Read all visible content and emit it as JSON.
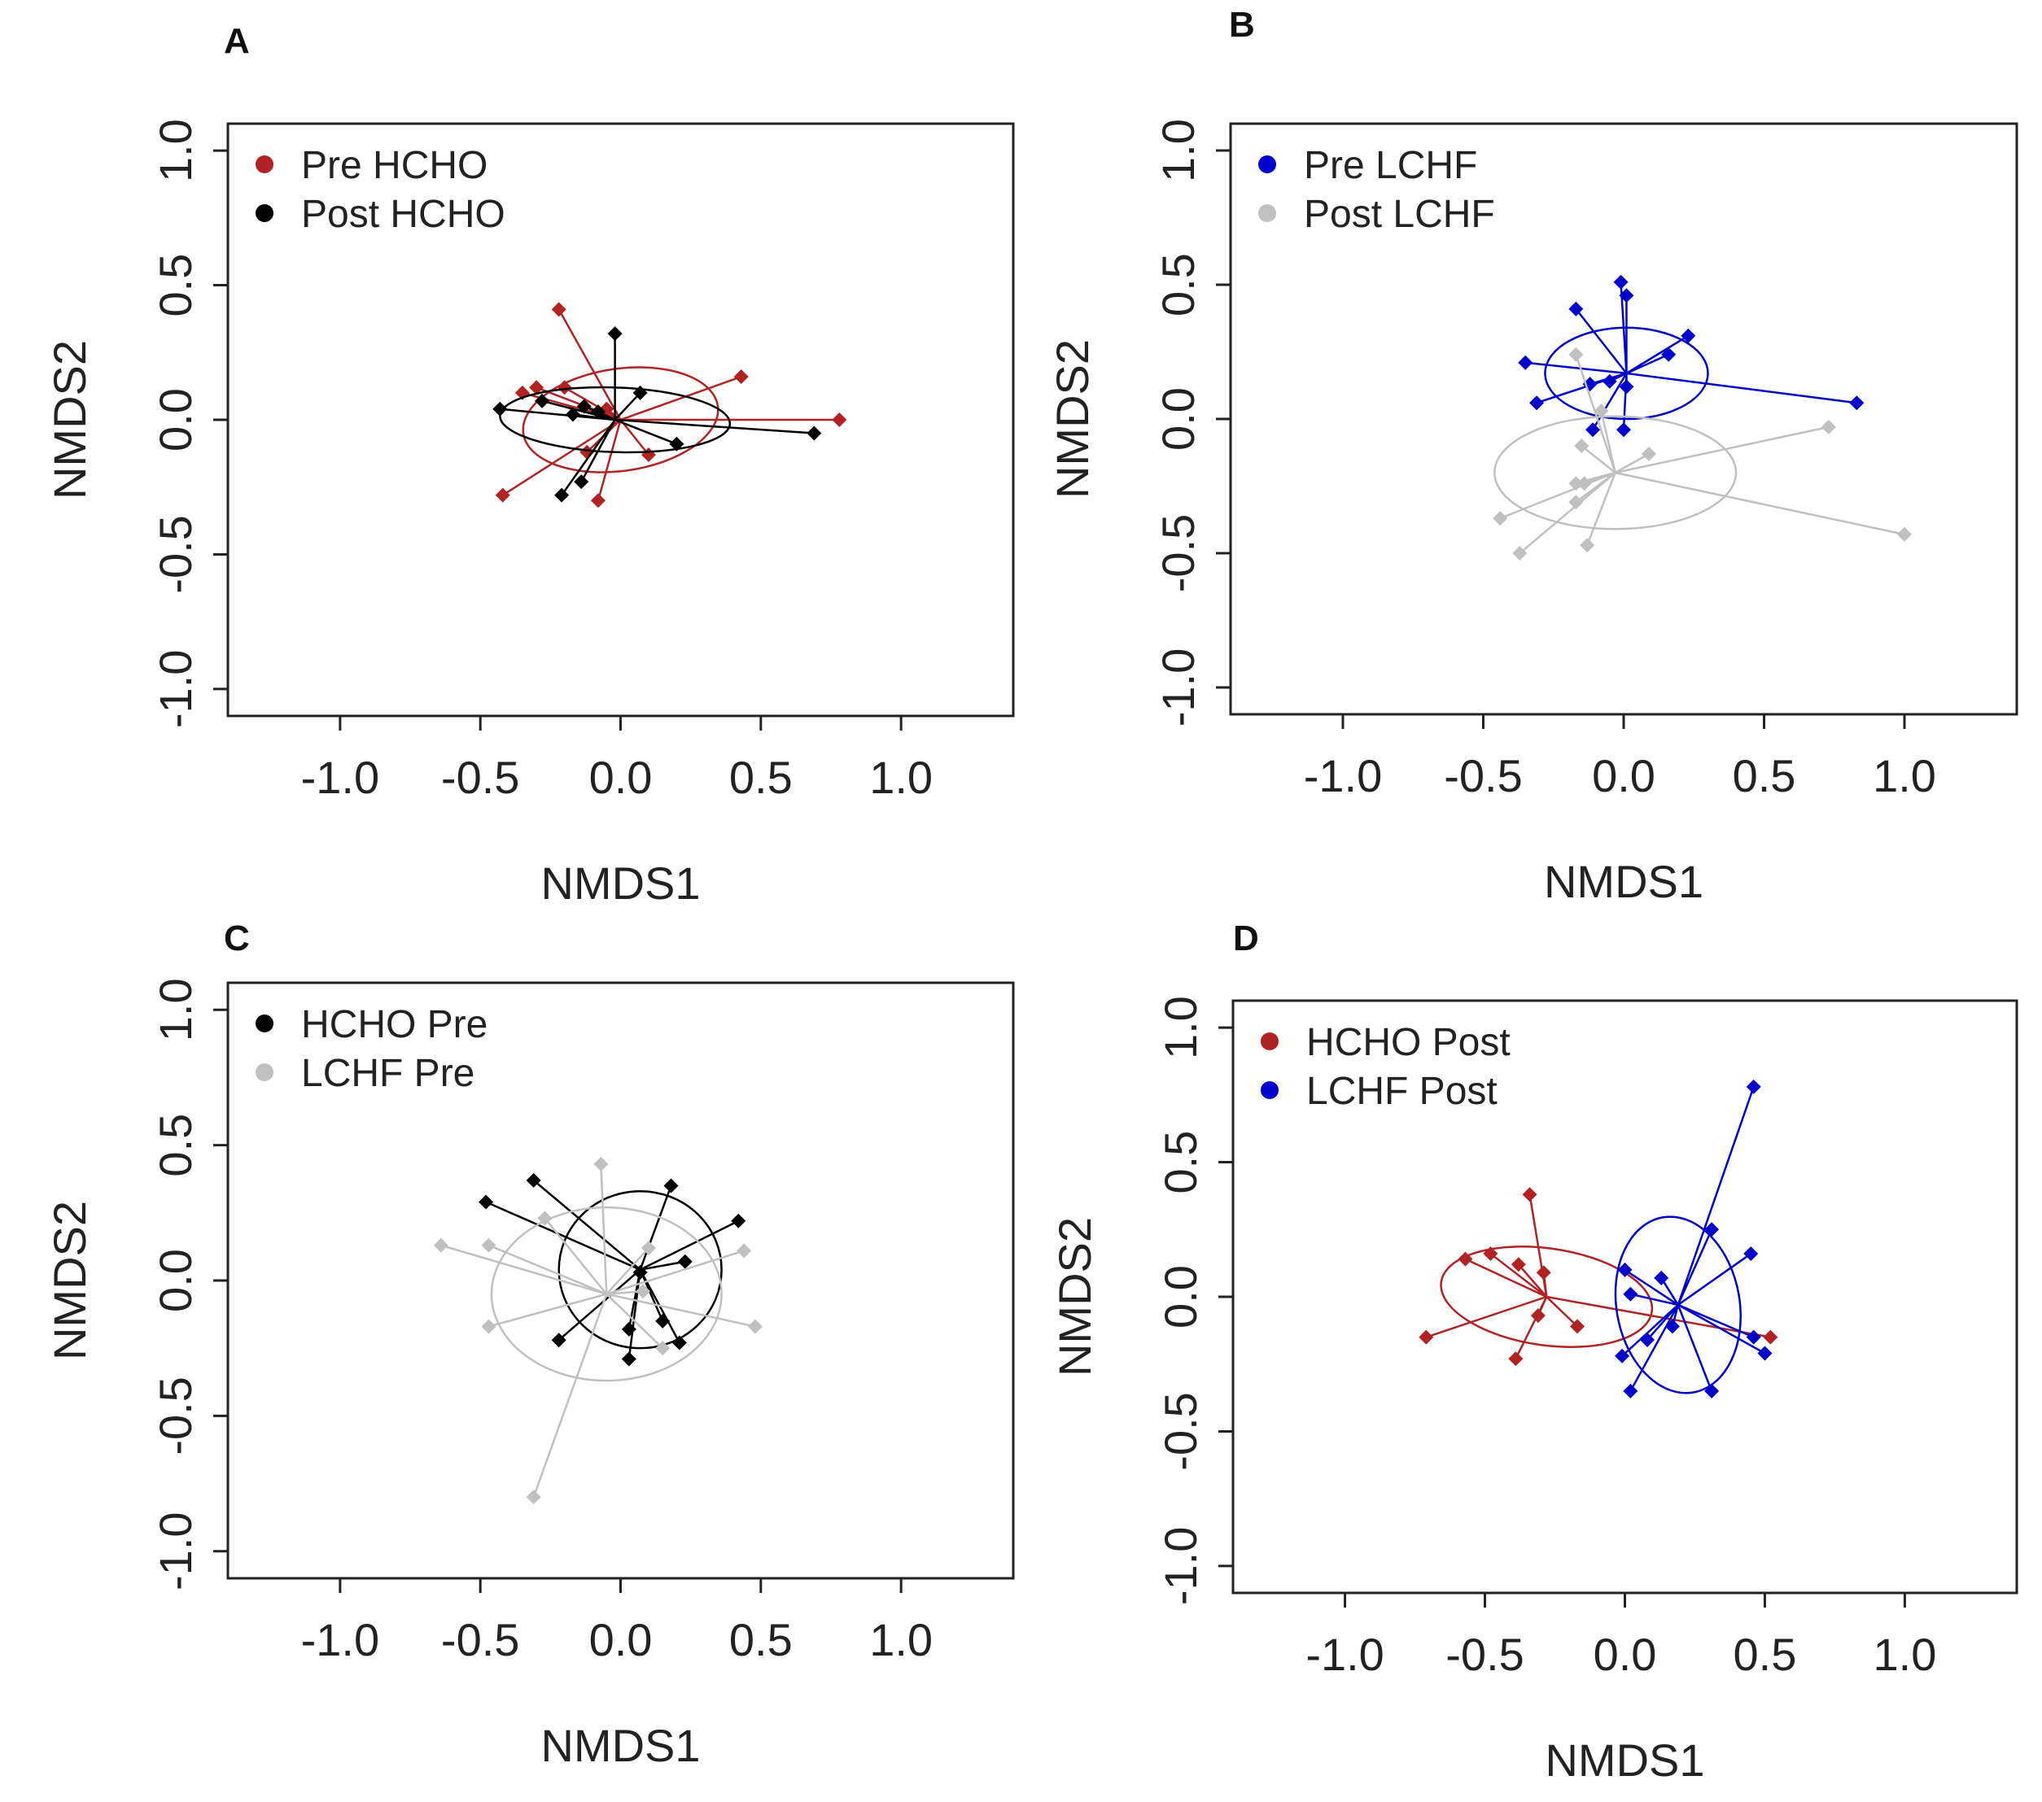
{
  "chart_data": [
    {
      "type": "scatter",
      "panel": "A",
      "xlabel": "NMDS1",
      "ylabel": "NMDS2",
      "xlim": [
        -1.4,
        1.4
      ],
      "ylim": [
        -1.1,
        1.1
      ],
      "xticks": [
        -1.0,
        -0.5,
        0.0,
        0.5,
        1.0
      ],
      "yticks": [
        -1.0,
        -0.5,
        0.0,
        0.5,
        1.0
      ],
      "xtick_labels": [
        "-1.0",
        "-0.5",
        "0.0",
        "0.5",
        "1.0"
      ],
      "ytick_labels": [
        "-1.0",
        "-0.5",
        "0.0",
        "0.5",
        "1.0"
      ],
      "legend_position": "top-left",
      "series": [
        {
          "name": "Pre HCHO",
          "color": "#b22222",
          "centroid": [
            0.0,
            0.0
          ],
          "ellipse": {
            "rx": 0.35,
            "ry": 0.19,
            "angle_deg": 8
          },
          "points": [
            [
              -0.22,
              0.41
            ],
            [
              0.43,
              0.16
            ],
            [
              0.78,
              0.0
            ],
            [
              -0.35,
              0.1
            ],
            [
              -0.3,
              0.12
            ],
            [
              -0.2,
              0.12
            ],
            [
              -0.05,
              0.04
            ],
            [
              -0.12,
              -0.12
            ],
            [
              0.1,
              -0.13
            ],
            [
              -0.08,
              -0.3
            ],
            [
              -0.42,
              -0.28
            ]
          ]
        },
        {
          "name": "Post HCHO",
          "color": "#000000",
          "centroid": [
            -0.02,
            0.0
          ],
          "ellipse": {
            "rx": 0.41,
            "ry": 0.12,
            "angle_deg": -2
          },
          "points": [
            [
              -0.43,
              0.04
            ],
            [
              -0.28,
              0.07
            ],
            [
              -0.17,
              0.02
            ],
            [
              -0.13,
              0.05
            ],
            [
              -0.08,
              0.03
            ],
            [
              -0.02,
              0.32
            ],
            [
              0.07,
              0.1
            ],
            [
              0.2,
              -0.09
            ],
            [
              0.69,
              -0.05
            ],
            [
              -0.14,
              -0.23
            ],
            [
              -0.21,
              -0.28
            ]
          ]
        }
      ]
    },
    {
      "type": "scatter",
      "panel": "B",
      "xlabel": "NMDS1",
      "ylabel": "NMDS2",
      "xlim": [
        -1.4,
        1.4
      ],
      "ylim": [
        -1.1,
        1.1
      ],
      "xticks": [
        -1.0,
        -0.5,
        0.0,
        0.5,
        1.0
      ],
      "yticks": [
        -1.0,
        -0.5,
        0.0,
        0.5,
        1.0
      ],
      "xtick_labels": [
        "-1.0",
        "-0.5",
        "0.0",
        "0.5",
        "1.0"
      ],
      "ytick_labels": [
        "-1.0",
        "-0.5",
        "0.0",
        "0.5",
        "1.0"
      ],
      "legend_position": "top-left",
      "series": [
        {
          "name": "Pre LCHF",
          "color": "#0000cd",
          "centroid": [
            0.01,
            0.17
          ],
          "ellipse": {
            "rx": 0.29,
            "ry": 0.17,
            "angle_deg": 0
          },
          "points": [
            [
              -0.01,
              0.51
            ],
            [
              0.01,
              0.46
            ],
            [
              -0.17,
              0.41
            ],
            [
              0.23,
              0.31
            ],
            [
              0.16,
              0.24
            ],
            [
              -0.35,
              0.21
            ],
            [
              -0.12,
              0.13
            ],
            [
              0.01,
              0.12
            ],
            [
              -0.05,
              0.14
            ],
            [
              -0.31,
              0.06
            ],
            [
              0.83,
              0.06
            ],
            [
              -0.11,
              -0.04
            ],
            [
              0.0,
              -0.04
            ]
          ]
        },
        {
          "name": "Post LCHF",
          "color": "#c0c0c0",
          "centroid": [
            -0.03,
            -0.2
          ],
          "ellipse": {
            "rx": 0.43,
            "ry": 0.21,
            "angle_deg": 0
          },
          "points": [
            [
              -0.17,
              0.24
            ],
            [
              -0.08,
              0.03
            ],
            [
              0.73,
              -0.03
            ],
            [
              -0.15,
              -0.1
            ],
            [
              0.09,
              -0.13
            ],
            [
              -0.17,
              -0.24
            ],
            [
              -0.14,
              -0.24
            ],
            [
              -0.17,
              -0.31
            ],
            [
              -0.44,
              -0.37
            ],
            [
              1.0,
              -0.43
            ],
            [
              -0.13,
              -0.47
            ],
            [
              -0.37,
              -0.5
            ]
          ]
        }
      ]
    },
    {
      "type": "scatter",
      "panel": "C",
      "xlabel": "NMDS1",
      "ylabel": "NMDS2",
      "xlim": [
        -1.4,
        1.4
      ],
      "ylim": [
        -1.1,
        1.1
      ],
      "xticks": [
        -1.0,
        -0.5,
        0.0,
        0.5,
        1.0
      ],
      "yticks": [
        -1.0,
        -0.5,
        0.0,
        0.5,
        1.0
      ],
      "xtick_labels": [
        "-1.0",
        "-0.5",
        "0.0",
        "0.5",
        "1.0"
      ],
      "ytick_labels": [
        "-1.0",
        "-0.5",
        "0.0",
        "0.5",
        "1.0"
      ],
      "legend_position": "top-left",
      "series": [
        {
          "name": "HCHO Pre",
          "color": "#000000",
          "centroid": [
            0.07,
            0.04
          ],
          "ellipse": {
            "rx": 0.29,
            "ry": 0.29,
            "angle_deg": 0
          },
          "points": [
            [
              -0.31,
              0.37
            ],
            [
              -0.48,
              0.29
            ],
            [
              0.18,
              0.35
            ],
            [
              0.42,
              0.22
            ],
            [
              0.23,
              0.07
            ],
            [
              0.07,
              0.03
            ],
            [
              0.15,
              -0.15
            ],
            [
              0.03,
              -0.18
            ],
            [
              -0.22,
              -0.22
            ],
            [
              0.21,
              -0.23
            ],
            [
              0.03,
              -0.29
            ]
          ]
        },
        {
          "name": "LCHF Pre",
          "color": "#c0c0c0",
          "centroid": [
            -0.05,
            -0.05
          ],
          "ellipse": {
            "rx": 0.41,
            "ry": 0.32,
            "angle_deg": 0
          },
          "points": [
            [
              -0.07,
              0.43
            ],
            [
              -0.27,
              0.23
            ],
            [
              -0.64,
              0.13
            ],
            [
              -0.47,
              0.13
            ],
            [
              0.1,
              0.12
            ],
            [
              0.44,
              0.11
            ],
            [
              0.08,
              -0.04
            ],
            [
              -0.47,
              -0.17
            ],
            [
              0.48,
              -0.17
            ],
            [
              0.15,
              -0.25
            ],
            [
              -0.31,
              -0.8
            ]
          ]
        }
      ]
    },
    {
      "type": "scatter",
      "panel": "D",
      "xlabel": "NMDS1",
      "ylabel": "NMDS2",
      "xlim": [
        -1.4,
        1.4
      ],
      "ylim": [
        -1.1,
        1.1
      ],
      "xticks": [
        -1.0,
        -0.5,
        0.0,
        0.5,
        1.0
      ],
      "yticks": [
        -1.0,
        -0.5,
        0.0,
        0.5,
        1.0
      ],
      "xtick_labels": [
        "-1.0",
        "-0.5",
        "0.0",
        "0.5",
        "1.0"
      ],
      "ytick_labels": [
        "-1.0",
        "-0.5",
        "0.0",
        "0.5",
        "1.0"
      ],
      "legend_position": "top-left",
      "series": [
        {
          "name": "HCHO Post",
          "color": "#b22222",
          "centroid": [
            -0.28,
            0.0
          ],
          "ellipse": {
            "rx": 0.38,
            "ry": 0.18,
            "angle_deg": -8
          },
          "points": [
            [
              -0.34,
              0.38
            ],
            [
              -0.57,
              0.14
            ],
            [
              -0.48,
              0.16
            ],
            [
              -0.38,
              0.12
            ],
            [
              -0.29,
              0.09
            ],
            [
              0.52,
              -0.15
            ],
            [
              -0.31,
              -0.07
            ],
            [
              -0.17,
              -0.11
            ],
            [
              -0.71,
              -0.15
            ],
            [
              -0.39,
              -0.23
            ]
          ]
        },
        {
          "name": "LCHF Post",
          "color": "#0000cd",
          "centroid": [
            0.19,
            -0.03
          ],
          "ellipse": {
            "rx": 0.22,
            "ry": 0.33,
            "angle_deg": 10
          },
          "points": [
            [
              0.46,
              0.78
            ],
            [
              0.31,
              0.25
            ],
            [
              0.45,
              0.16
            ],
            [
              0.0,
              0.1
            ],
            [
              0.02,
              0.01
            ],
            [
              0.13,
              0.07
            ],
            [
              0.08,
              -0.16
            ],
            [
              0.17,
              -0.11
            ],
            [
              0.46,
              -0.15
            ],
            [
              0.5,
              -0.21
            ],
            [
              -0.01,
              -0.22
            ],
            [
              0.02,
              -0.35
            ],
            [
              0.31,
              -0.35
            ]
          ]
        }
      ]
    }
  ]
}
